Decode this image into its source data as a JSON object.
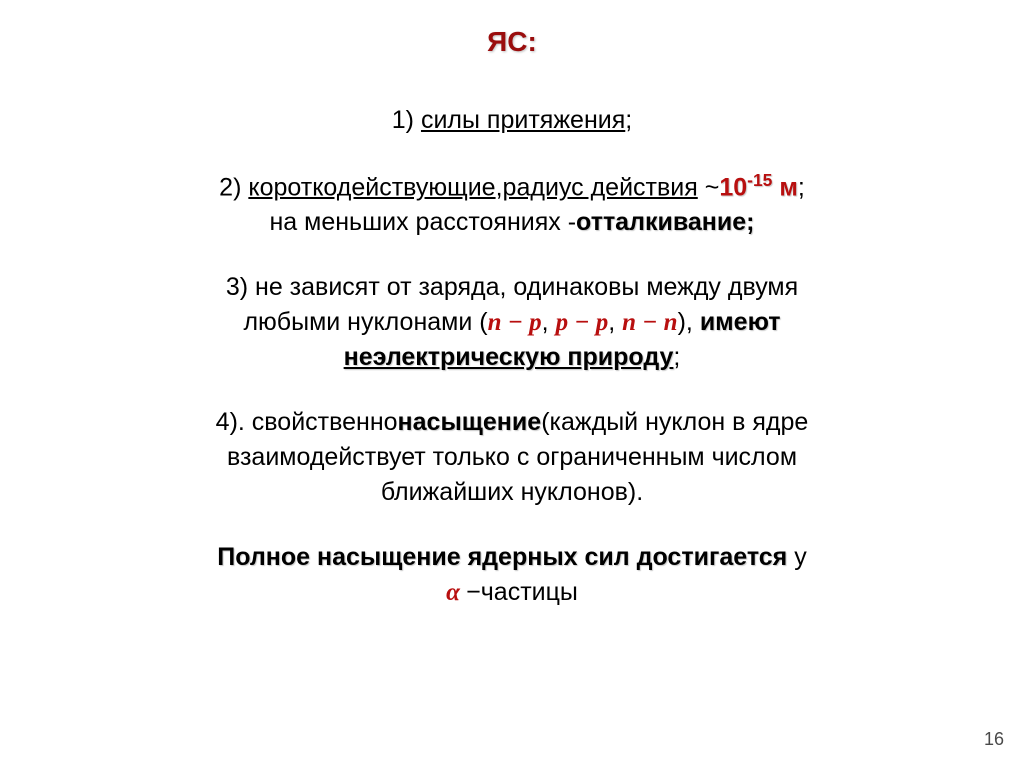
{
  "colors": {
    "title": "#9a0d0d",
    "body": "#000000",
    "accent": "#b80f0f"
  },
  "title": "ЯС:",
  "items": {
    "p1_pre": "1)   ",
    "p1_u": "силы притяжения",
    "p1_post": ";",
    "p2_a": "2) ",
    "p2_u1": "короткодействующие",
    "p2_b": ",",
    "p2_u2": "радиус действия",
    "p2_c": " ~",
    "p2_exp": "10",
    "p2_sup": "-15",
    "p2_d": " м",
    "p2_e": ";",
    "p2_line2_a": "на меньших расстояниях -",
    "p2_line2_b": "отталкивание;",
    "p3_a": "3) не зависят от заряда, одинаковы между двумя",
    "p3_b_pre": "любыми нуклонами (",
    "p3_m1": "n − p",
    "p3_c1": ", ",
    "p3_m2": "p − p",
    "p3_c2": ", ",
    "p3_m3": "n − n",
    "p3_b_post": "), ",
    "p3_bold1": "имеют",
    "p3_bold2": "неэлектрическую природу",
    "p3_end": ";",
    "p4_a": "4). свойственно",
    "p4_b": "насыщение",
    "p4_c": "(каждый нуклон в ядре",
    "p4_l2": "взаимодействует только с ограниченным числом",
    "p4_l3": "ближайших нуклонов).",
    "p5_a": "Полное насыщение ядерных сил достигается ",
    "p5_b": "у",
    "p5_alpha": "α ",
    "p5_c": "−частицы"
  },
  "page": "16"
}
